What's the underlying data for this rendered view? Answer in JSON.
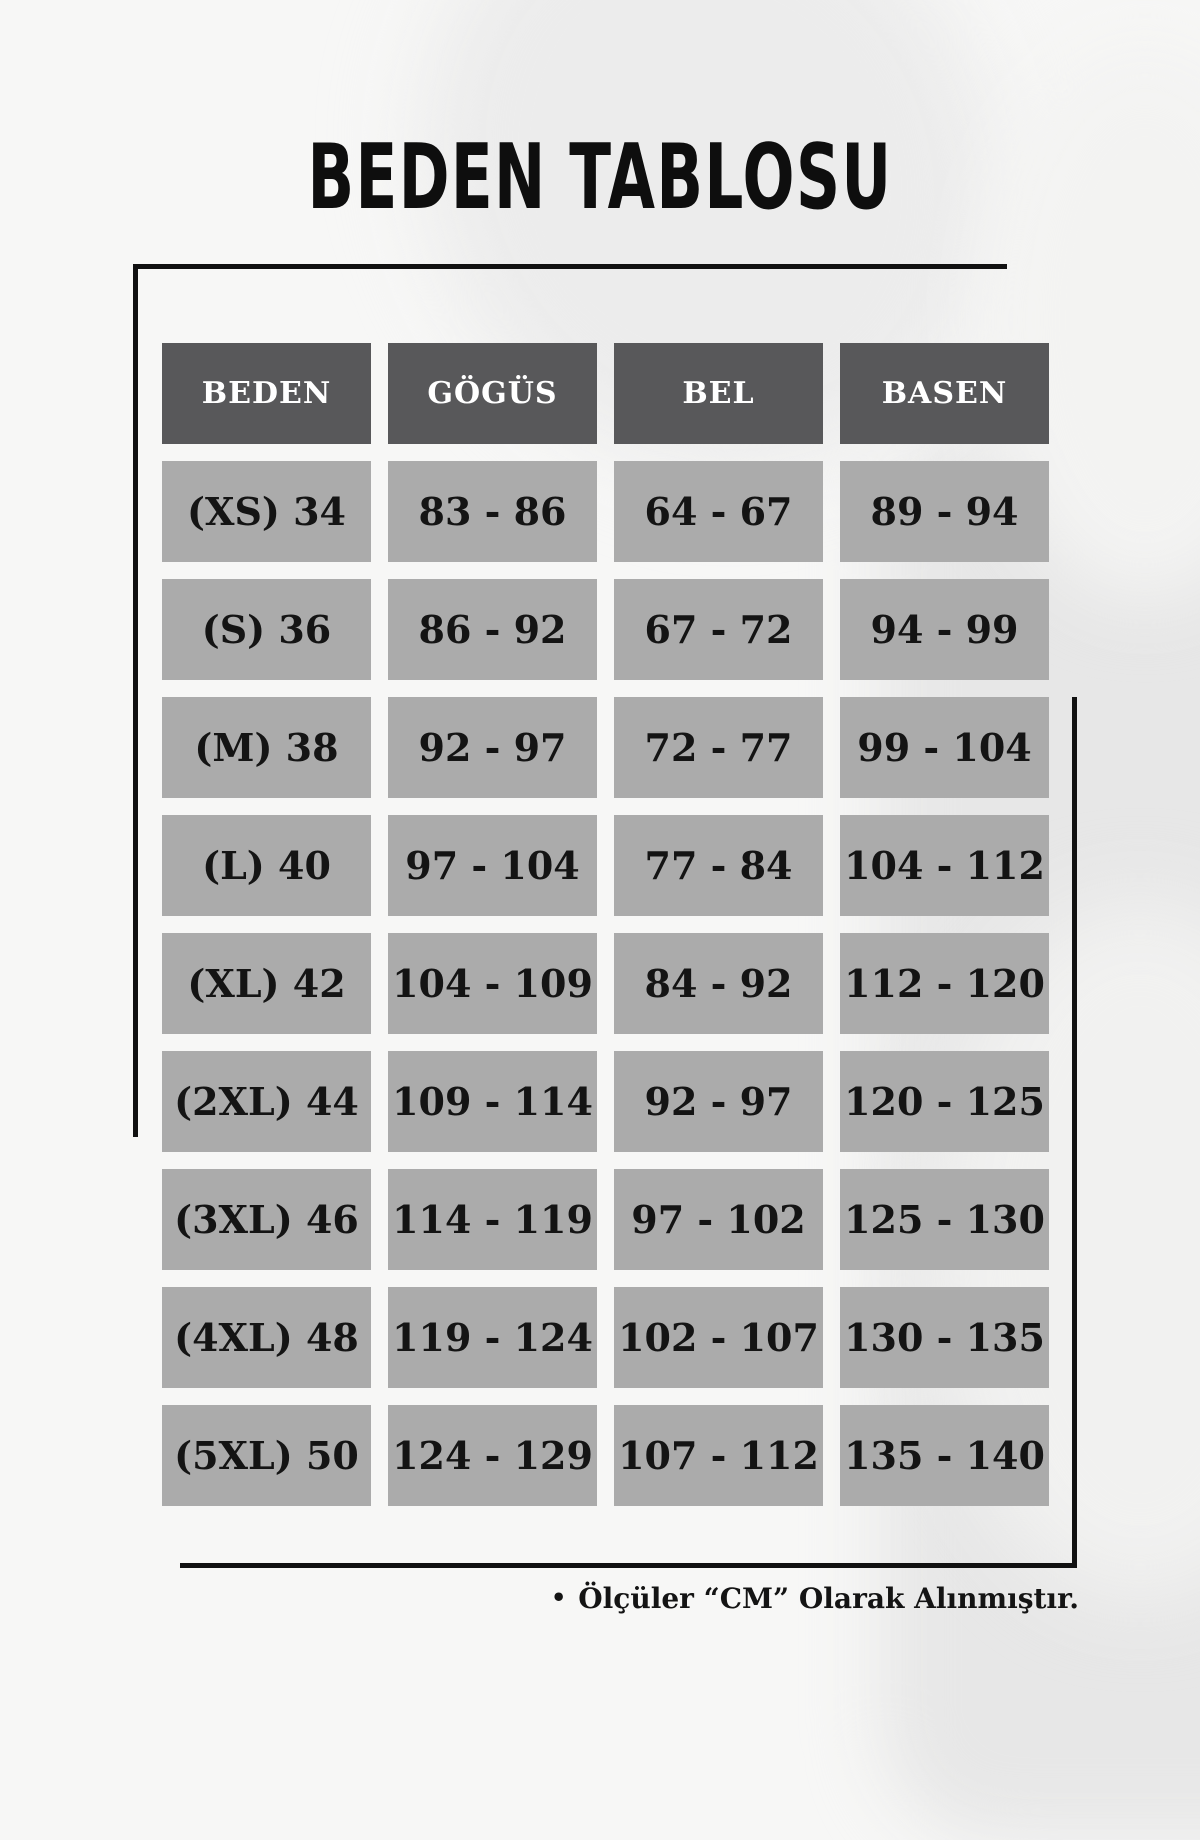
{
  "title": "BEDEN TABLOSU",
  "table": {
    "headers": [
      "BEDEN",
      "GÖGÜS",
      "BEL",
      "BASEN"
    ],
    "rows": [
      [
        "(XS) 34",
        "83 - 86",
        "64 - 67",
        "89 - 94"
      ],
      [
        "(S) 36",
        "86 - 92",
        "67 - 72",
        "94 - 99"
      ],
      [
        "(M) 38",
        "92 - 97",
        "72 - 77",
        "99 - 104"
      ],
      [
        "(L) 40",
        "97 - 104",
        "77 - 84",
        "104 - 112"
      ],
      [
        "(XL) 42",
        "104 - 109",
        "84 - 92",
        "112 - 120"
      ],
      [
        "(2XL) 44",
        "109 - 114",
        "92 - 97",
        "120 - 125"
      ],
      [
        "(3XL) 46",
        "114 - 119",
        "97 - 102",
        "125 - 130"
      ],
      [
        "(4XL) 48",
        "119 - 124",
        "102 - 107",
        "130 - 135"
      ],
      [
        "(5XL) 50",
        "124 - 129",
        "107 - 112",
        "135 - 140"
      ]
    ]
  },
  "footer": {
    "bullet": "•",
    "note": "Ölçüler “CM” Olarak Alınmıştır."
  },
  "colors": {
    "page_bg": "#f7f7f6",
    "header_bg": "#58585a",
    "header_text": "#ffffff",
    "cell_bg": "#ababab",
    "cell_text": "#141414",
    "line": "#111111"
  }
}
